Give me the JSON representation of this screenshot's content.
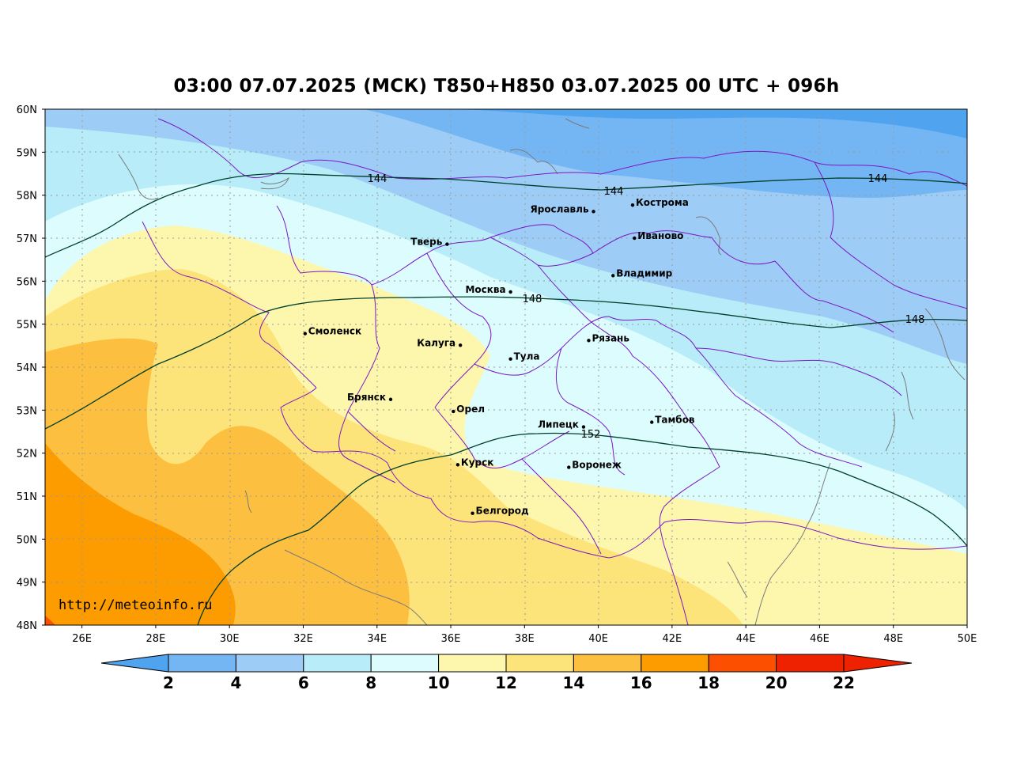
{
  "title": "03:00 07.07.2025 (МСК) T850+H850 03.07.2025 00 UTC + 096h",
  "watermark": "http://meteoinfo.ru",
  "lat_labels": [
    "60N",
    "59N",
    "58N",
    "57N",
    "56N",
    "55N",
    "54N",
    "53N",
    "52N",
    "51N",
    "50N",
    "49N",
    "48N"
  ],
  "lon_labels": [
    "26E",
    "28E",
    "30E",
    "32E",
    "34E",
    "36E",
    "38E",
    "40E",
    "42E",
    "44E",
    "46E",
    "48E",
    "50E"
  ],
  "cities": [
    {
      "name": "Кострома",
      "lon": 40.93,
      "lat": 57.77
    },
    {
      "name": "Ярославль",
      "lon": 39.87,
      "lat": 57.62
    },
    {
      "name": "Иваново",
      "lon": 40.98,
      "lat": 57.0
    },
    {
      "name": "Тверь",
      "lon": 35.9,
      "lat": 56.86
    },
    {
      "name": "Владимир",
      "lon": 40.4,
      "lat": 56.13
    },
    {
      "name": "Москва",
      "lon": 37.62,
      "lat": 55.75
    },
    {
      "name": "Смоленск",
      "lon": 32.05,
      "lat": 54.78
    },
    {
      "name": "Рязань",
      "lon": 39.74,
      "lat": 54.62
    },
    {
      "name": "Калуга",
      "lon": 36.26,
      "lat": 54.51
    },
    {
      "name": "Тула",
      "lon": 37.62,
      "lat": 54.19
    },
    {
      "name": "Брянск",
      "lon": 34.37,
      "lat": 53.25
    },
    {
      "name": "Орел",
      "lon": 36.07,
      "lat": 52.97
    },
    {
      "name": "Липецк",
      "lon": 39.6,
      "lat": 52.61
    },
    {
      "name": "Тамбов",
      "lon": 41.45,
      "lat": 52.72
    },
    {
      "name": "Курск",
      "lon": 36.19,
      "lat": 51.73
    },
    {
      "name": "Воронеж",
      "lon": 39.2,
      "lat": 51.67
    },
    {
      "name": "Белгород",
      "lon": 36.59,
      "lat": 50.6
    }
  ],
  "contours": [
    {
      "label": "144"
    },
    {
      "label": "148"
    },
    {
      "label": "152"
    }
  ],
  "colorbar": {
    "labels": [
      "2",
      "4",
      "6",
      "8",
      "10",
      "12",
      "14",
      "16",
      "18",
      "20",
      "22"
    ],
    "colors": [
      "#4fa3ef",
      "#74b6f4",
      "#9dcdf6",
      "#b7ecf8",
      "#dcfcfd",
      "#fdf7ad",
      "#fde47a",
      "#fdbf40",
      "#fc9c00",
      "#fc5000",
      "#ee2200"
    ]
  }
}
